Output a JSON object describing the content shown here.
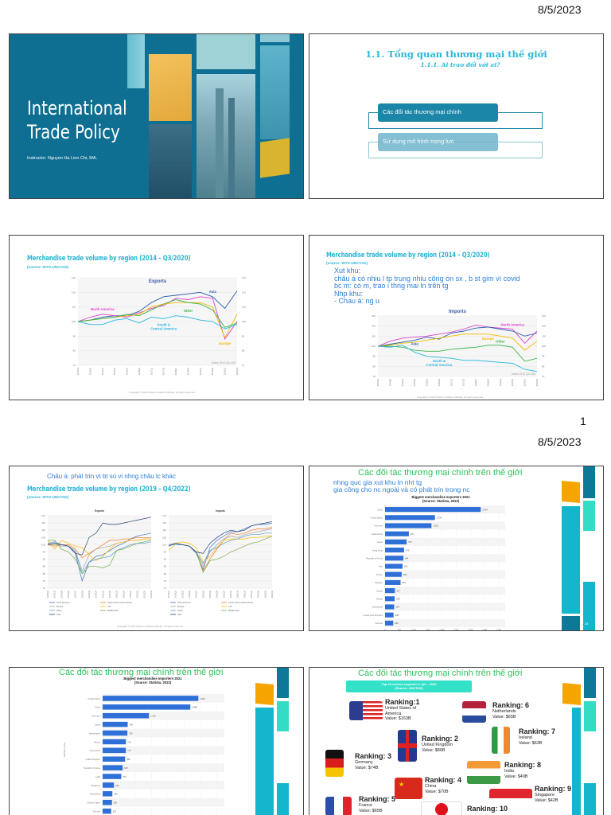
{
  "page": {
    "date_top": "8/5/2023",
    "page_number": "1",
    "date_middle": "8/5/2023"
  },
  "slide1": {
    "title_line1": "International",
    "title_line2": "Trade Policy",
    "instructor": "Instructor: Nguyen Ha Lien Chi, MA.",
    "bg_color": "#0f6f93",
    "accent_color": "#f0b43c"
  },
  "slide2": {
    "title": "1.1. Tổng quan thương mại thế giới",
    "subtitle": "1.1.1. Ai trao đổi với ai?",
    "items": [
      "Các đối tác thương mại chính",
      "Sử dụng mô hình trọng lực"
    ]
  },
  "slide3": {
    "heading": "Merchandise trade volume by region (2014 – Q3/2020)",
    "source": "(source: WTO-UNCTAD)",
    "copyright": "Copyright © 2018 Pearson Addison-Wesley. All rights reserved."
  },
  "slide4": {
    "heading": "Merchandise trade volume by region (2014 – Q3/2020)",
    "source": "(source: WTO-UNCTAD)",
    "copyright": "Copyright © 2018 Pearson Addison-Wesley. All rights reserved.",
    "note_lines": [
      "Xut khu:",
      "châu á có nhiu l tp trung nhiu công on sx , b st gim vì covid",
      "bc m: có m, trao i thng mai ln trên tg",
      "Nhp khu:",
      "- Chau á: ng u"
    ]
  },
  "slide5": {
    "note": "Châu á: phát trin vt bt so vi nhng châu lc khác",
    "heading": "Merchandise trade volume by region (2019 – Q4/2022)",
    "source": "(source: WTO-UNCTAD)",
    "copyright": "Copyright © 2018 Pearson Addison-Wesley. All rights reserved."
  },
  "slide6": {
    "title": "Các đối tác thương mại chính trên thế giới",
    "note_lines": [
      "nhng quc gia xut khu ln nht tg",
      "gia công cho nc ngoài và có phát trin trong nc"
    ],
    "slide_number": "24"
  },
  "slide7": {
    "title": "Các đối tác thương mại chính trên thế giới"
  },
  "slide8": {
    "title": "Các đối tác thương mại chính trên thế giới",
    "banner_line1": "Top 10 service exporter in Q3 – 2020",
    "banner_line2": "(Source: UNCTAD)",
    "banner_color": "#33e0c8",
    "rankings": [
      {
        "rank": "Ranking:1",
        "country": "United States of America",
        "value": "Value: $163B",
        "flag": "us-flag"
      },
      {
        "rank": "Ranking: 2",
        "country": "United Kingdom",
        "value": "Value: $86B",
        "flag": "uk-flag"
      },
      {
        "rank": "Ranking: 3",
        "country": "Germany",
        "value": "Value: $74B",
        "flag": "germany-flag"
      },
      {
        "rank": "Ranking: 4",
        "country": "China",
        "value": "Value: $70B",
        "flag": "china-flag"
      },
      {
        "rank": "Ranking: 5",
        "country": "France",
        "value": "Value: $65B",
        "flag": "france-flag"
      },
      {
        "rank": "Ranking: 6",
        "country": "Netherlands",
        "value": "Value: $65B",
        "flag": "netherlands-flag"
      },
      {
        "rank": "Ranking: 7",
        "country": "Ireland",
        "value": "Value: $63B",
        "flag": "ireland-flag"
      },
      {
        "rank": "Ranking: 8",
        "country": "India",
        "value": "Value: $49B",
        "flag": "india-flag"
      },
      {
        "rank": "Ranking: 9",
        "country": "Singapore",
        "value": "Value: $42B",
        "flag": "singapore-flag"
      },
      {
        "rank": "Ranking: 10",
        "country": "",
        "value": "",
        "flag": "japan-flag"
      }
    ]
  },
  "chart_data": [
    {
      "type": "line",
      "title": "Exports",
      "annotation": "Index 2014 Q1=100",
      "ylim": [
        70,
        130
      ],
      "yticks": [
        70,
        80,
        90,
        100,
        110,
        120,
        130
      ],
      "grid": true,
      "x": [
        "2014Q1",
        "2014Q3",
        "2015Q1",
        "2015Q3",
        "2016Q1",
        "2016Q3",
        "2017Q1",
        "2017Q3",
        "2018Q1",
        "2018Q3",
        "2019Q1",
        "2019Q3",
        "2020Q1",
        "2020Q3"
      ],
      "series": [
        {
          "name": "Asia",
          "color": "#2a5caa",
          "values": [
            100,
            101,
            103,
            104,
            104,
            107,
            113,
            117,
            118,
            119,
            120,
            117,
            109,
            121
          ]
        },
        {
          "name": "North America",
          "color": "#e040d0",
          "values": [
            100,
            103,
            105,
            104,
            103,
            106,
            109,
            111,
            116,
            115,
            117,
            116,
            88,
            100
          ]
        },
        {
          "name": "Europe",
          "color": "#f5b800",
          "values": [
            100,
            101,
            102,
            103,
            104,
            105,
            110,
            112,
            113,
            113,
            113,
            110,
            89,
            105
          ]
        },
        {
          "name": "Other",
          "color": "#3cb44b",
          "values": [
            100,
            101,
            102,
            103,
            105,
            104,
            108,
            112,
            115,
            113,
            112,
            108,
            96,
            99
          ]
        },
        {
          "name": "South & Central America",
          "color": "#29b6e0",
          "values": [
            100,
            98,
            98,
            101,
            102,
            99,
            103,
            102,
            104,
            103,
            101,
            100,
            95,
            98
          ]
        }
      ]
    },
    {
      "type": "line",
      "title": "Imports",
      "annotation": "Index 2014 Q1=100",
      "ylim": [
        70,
        130
      ],
      "yticks": [
        70,
        80,
        90,
        100,
        110,
        120,
        130
      ],
      "grid": true,
      "x": [
        "2014Q1",
        "2014Q3",
        "2015Q1",
        "2015Q3",
        "2016Q1",
        "2016Q3",
        "2017Q1",
        "2017Q3",
        "2018Q1",
        "2018Q3",
        "2019Q1",
        "2019Q3",
        "2020Q1",
        "2020Q3"
      ],
      "series": [
        {
          "name": "North America",
          "color": "#e040d0",
          "values": [
            100,
            105,
            108,
            109,
            110,
            112,
            114,
            117,
            121,
            119,
            118,
            117,
            103,
            115
          ]
        },
        {
          "name": "Asia",
          "color": "#2a5caa",
          "values": [
            100,
            102,
            104,
            106,
            109,
            107,
            113,
            115,
            118,
            119,
            117,
            115,
            110,
            113
          ]
        },
        {
          "name": "Europe",
          "color": "#f5b800",
          "values": [
            100,
            101,
            103,
            104,
            106,
            108,
            110,
            112,
            112,
            112,
            110,
            108,
            96,
            105
          ]
        },
        {
          "name": "Other",
          "color": "#3cb44b",
          "values": [
            100,
            100,
            99,
            96,
            95,
            95,
            97,
            98,
            99,
            101,
            101,
            99,
            85,
            88
          ]
        },
        {
          "name": "South & Central America",
          "color": "#29b6e0",
          "values": [
            100,
            99,
            101,
            94,
            90,
            89,
            88,
            86,
            86,
            85,
            84,
            83,
            77,
            75
          ]
        }
      ]
    },
    {
      "type": "line",
      "title": "Exports",
      "ylim": [
        70,
        120
      ],
      "yticks": [
        70,
        75,
        80,
        85,
        90,
        95,
        100,
        105,
        110,
        115,
        120
      ],
      "grid": true,
      "legend": "bottom",
      "x": [
        "2019Q1",
        "2019Q2",
        "2019Q3",
        "2019Q4",
        "2020Q1",
        "2020Q2",
        "2020Q3",
        "2020Q4",
        "2021Q1",
        "2021Q2",
        "2021Q3",
        "2021Q4",
        "2022Q1",
        "2022Q2",
        "2022Q3",
        "2022Q4"
      ],
      "series": [
        {
          "name": "North America",
          "color": "#4472c4",
          "values": [
            100,
            101,
            100,
            99,
            94,
            75,
            88,
            92,
            93,
            96,
            99,
            101,
            104,
            106,
            107,
            108
          ]
        },
        {
          "name": "South and Central America",
          "color": "#ed7d31",
          "values": [
            100,
            99,
            100,
            100,
            97,
            91,
            94,
            97,
            100,
            103,
            103,
            104,
            104,
            105,
            105,
            105
          ]
        },
        {
          "name": "Europe",
          "color": "#a5a5a5",
          "values": [
            101,
            100,
            99,
            99,
            96,
            82,
            93,
            97,
            98,
            99,
            101,
            102,
            103,
            103,
            104,
            104
          ]
        },
        {
          "name": "CIS",
          "color": "#ffc000",
          "values": [
            103,
            97,
            103,
            101,
            99,
            98,
            93,
            89,
            92,
            97,
            101,
            102,
            103,
            103,
            104,
            104
          ]
        },
        {
          "name": "Africa",
          "color": "#5b9bd5",
          "values": [
            101,
            102,
            100,
            99,
            95,
            80,
            88,
            90,
            91,
            92,
            96,
            98,
            100,
            101,
            101,
            102
          ]
        },
        {
          "name": "Middle East",
          "color": "#70ad47",
          "values": [
            103,
            103,
            97,
            95,
            90,
            80,
            85,
            85,
            84,
            86,
            96,
            97,
            99,
            101,
            102,
            103
          ]
        },
        {
          "name": "Asia",
          "color": "#264478",
          "values": [
            100,
            101,
            100,
            99,
            94,
            93,
            105,
            108,
            115,
            114,
            114,
            115,
            116,
            117,
            118,
            119
          ]
        }
      ]
    },
    {
      "type": "line",
      "title": "Imports",
      "ylim": [
        70,
        120
      ],
      "yticks": [
        70,
        75,
        80,
        85,
        90,
        95,
        100,
        105,
        110,
        115,
        120
      ],
      "grid": true,
      "legend": "bottom",
      "x": [
        "2019Q1",
        "2019Q2",
        "2019Q3",
        "2019Q4",
        "2020Q1",
        "2020Q2",
        "2020Q3",
        "2020Q4",
        "2021Q1",
        "2021Q2",
        "2021Q3",
        "2021Q4",
        "2022Q1",
        "2022Q2",
        "2022Q3",
        "2022Q4"
      ],
      "series": [
        {
          "name": "North America",
          "color": "#4472c4",
          "values": [
            99,
            101,
            100,
            99,
            94,
            83,
            98,
            103,
            106,
            109,
            109,
            111,
            113,
            114,
            114,
            115
          ]
        },
        {
          "name": "South and Central America",
          "color": "#ed7d31",
          "values": [
            100,
            101,
            100,
            99,
            95,
            82,
            90,
            97,
            103,
            108,
            107,
            108,
            110,
            111,
            111,
            112
          ]
        },
        {
          "name": "Europe",
          "color": "#a5a5a5",
          "values": [
            100,
            101,
            100,
            99,
            95,
            85,
            95,
            100,
            104,
            106,
            105,
            107,
            108,
            109,
            110,
            111
          ]
        },
        {
          "name": "CIS",
          "color": "#ffc000",
          "values": [
            96,
            101,
            102,
            101,
            98,
            88,
            92,
            98,
            103,
            104,
            104,
            104,
            105,
            105,
            106,
            106
          ]
        },
        {
          "name": "Africa",
          "color": "#5b9bd5",
          "values": [
            100,
            100,
            100,
            99,
            95,
            87,
            96,
            98,
            101,
            103,
            104,
            106,
            107,
            107,
            108,
            108
          ]
        },
        {
          "name": "Middle East",
          "color": "#70ad47",
          "values": [
            99,
            101,
            100,
            99,
            95,
            81,
            89,
            90,
            92,
            95,
            97,
            99,
            101,
            102,
            104,
            106
          ]
        },
        {
          "name": "Asia",
          "color": "#264478",
          "values": [
            99,
            101,
            100,
            99,
            95,
            94,
            101,
            105,
            108,
            110,
            109,
            110,
            113,
            114,
            115,
            116
          ]
        }
      ]
    },
    {
      "type": "bar",
      "orientation": "horizontal",
      "title": "Biggest merchandise exporters 2021",
      "subtitle": "(Source: Statista, 2023)",
      "xlabel": "Export value in billion U.S. dollars",
      "xlim": [
        0,
        4000
      ],
      "xticks": [
        "0",
        "500",
        "1,000",
        "1,500",
        "2,000",
        "2,500",
        "3,000",
        "3,500",
        "4,000"
      ],
      "color": "#2f6fd8",
      "categories": [
        "China",
        "United States",
        "Germany",
        "Netherlands",
        "Japan",
        "Hong Kong",
        "Republic of Korea",
        "Italy",
        "France",
        "Belgium",
        "Taiwan",
        "Russia",
        "Switzerland",
        "United Arab Emirates",
        "Vietnam"
      ],
      "values": [
        3364,
        1754,
        1632,
        837,
        756,
        670,
        644,
        615,
        585,
        545,
        347,
        338,
        318,
        298,
        288
      ]
    },
    {
      "type": "bar",
      "orientation": "horizontal",
      "title": "Biggest merchandise importers 2021",
      "subtitle": "(Source: Statista, 2023)",
      "ylabel": "Importing country",
      "xlim": [
        0,
        4000
      ],
      "color": "#2f6fd8",
      "categories": [
        "United States",
        "China",
        "Germany",
        "Japan",
        "Netherlands",
        "France",
        "Hong Kong",
        "United Kingdom",
        "Republic of Korea",
        "India",
        "Singapore",
        "Switzerland",
        "Chinese Taipei",
        "Vietnam"
      ],
      "values": [
        2935,
        2688,
        1419,
        769,
        758,
        714,
        712,
        688,
        615,
        570,
        346,
        298,
        286,
        262
      ]
    }
  ]
}
